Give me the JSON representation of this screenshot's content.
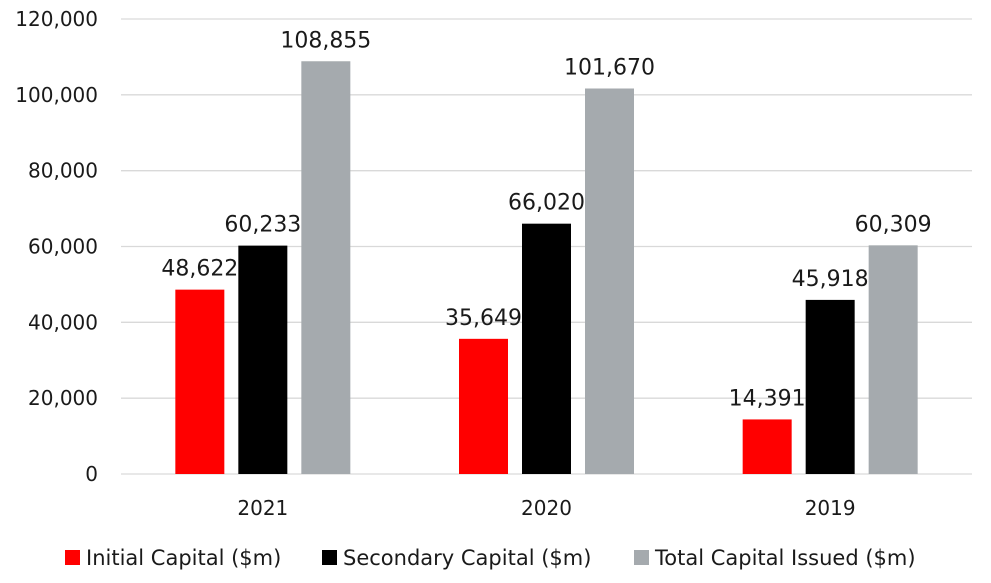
{
  "chart_data": {
    "type": "bar",
    "title": "",
    "xlabel": "",
    "ylabel": "",
    "categories": [
      "2021",
      "2020",
      "2019"
    ],
    "series": [
      {
        "name": "Initial Capital ($m)",
        "color": "#ff0000",
        "values": [
          48622,
          35649,
          14391
        ],
        "labels": [
          "48,622",
          "35,649",
          "14,391"
        ]
      },
      {
        "name": "Secondary Capital ($m)",
        "color": "#000000",
        "values": [
          60233,
          66020,
          45918
        ],
        "labels": [
          "60,233",
          "66,020",
          "45,918"
        ]
      },
      {
        "name": "Total Capital Issued ($m)",
        "color": "#a5aaae",
        "values": [
          108855,
          101670,
          60309
        ],
        "labels": [
          "108,855",
          "101,670",
          "60,309"
        ]
      }
    ],
    "ylim": [
      0,
      120000
    ],
    "yticks": [
      0,
      20000,
      40000,
      60000,
      80000,
      100000,
      120000
    ],
    "ytick_labels": [
      "0",
      "20,000",
      "40,000",
      "60,000",
      "80,000",
      "100,000",
      "120,000"
    ],
    "grid": true,
    "legend_position": "bottom"
  }
}
